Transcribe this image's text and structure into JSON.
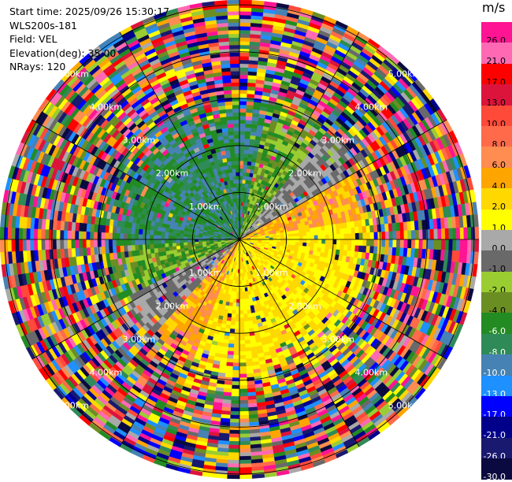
{
  "header": {
    "start_time": "Start time: 2025/09/26 15:30:17",
    "instrument": "WLS200s-181",
    "field": "Field: VEL",
    "elevation": "Elevation(deg): 35.00",
    "nrays": "NRays: 120"
  },
  "colorbar": {
    "unit": "m/s",
    "levels": [
      {
        "label": "26.0",
        "color": "#ff1493"
      },
      {
        "label": "21.0",
        "color": "#ff69b4"
      },
      {
        "label": "17.0",
        "color": "#ff0000"
      },
      {
        "label": "13.0",
        "color": "#dc143c"
      },
      {
        "label": "10.0",
        "color": "#ff4a3a"
      },
      {
        "label": "8.0",
        "color": "#ff6a4a"
      },
      {
        "label": "6.0",
        "color": "#ff8c50"
      },
      {
        "label": "4.0",
        "color": "#ffa500"
      },
      {
        "label": "2.0",
        "color": "#ffd800"
      },
      {
        "label": "1.0",
        "color": "#ffff00"
      },
      {
        "label": "0.0",
        "color": "#a9a9a9"
      },
      {
        "label": "-1.0",
        "color": "#696969"
      },
      {
        "label": "-2.0",
        "color": "#9acd32"
      },
      {
        "label": "-4.0",
        "color": "#6b8e23"
      },
      {
        "label": "-6.0",
        "color": "#228b22"
      },
      {
        "label": "-8.0",
        "color": "#2e8b57"
      },
      {
        "label": "-10.0",
        "color": "#4682b4"
      },
      {
        "label": "-13.0",
        "color": "#1e90ff"
      },
      {
        "label": "-17.0",
        "color": "#0000ff"
      },
      {
        "label": "-21.0",
        "color": "#00008b"
      },
      {
        "label": "-26.0",
        "color": "#191970"
      },
      {
        "label": "-30.0",
        "color": "#0a0a40"
      }
    ]
  },
  "range_rings": [
    {
      "label": "1.00km",
      "range_km": 1.0
    },
    {
      "label": "2.00km",
      "range_km": 2.0
    },
    {
      "label": "3.00km",
      "range_km": 3.0
    },
    {
      "label": "4.00km",
      "range_km": 4.0
    },
    {
      "label": "5.00km",
      "range_km": 5.0
    }
  ],
  "max_range_km": 5.0
}
